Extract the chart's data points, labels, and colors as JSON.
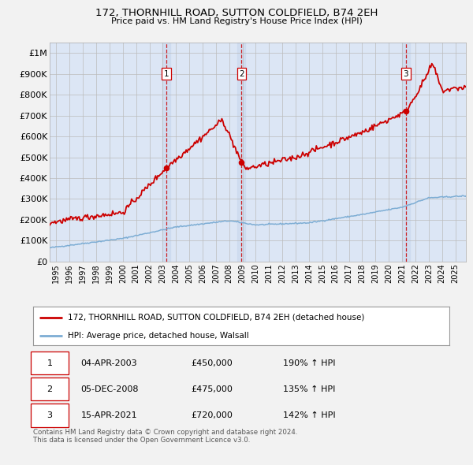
{
  "title": "172, THORNHILL ROAD, SUTTON COLDFIELD, B74 2EH",
  "subtitle": "Price paid vs. HM Land Registry's House Price Index (HPI)",
  "ytick_values": [
    0,
    100000,
    200000,
    300000,
    400000,
    500000,
    600000,
    700000,
    800000,
    900000,
    1000000
  ],
  "ylim": [
    0,
    1050000
  ],
  "xlim_start": 1994.5,
  "xlim_end": 2025.8,
  "bg_color": "#dce6f5",
  "grid_color": "#bbbbbb",
  "sale_dates": [
    2003.27,
    2008.93,
    2021.29
  ],
  "sale_prices": [
    450000,
    475000,
    720000
  ],
  "sale_labels": [
    "1",
    "2",
    "3"
  ],
  "vline_color": "#cc0000",
  "marker_color": "#cc0000",
  "hpi_line_color": "#7dadd4",
  "price_line_color": "#cc0000",
  "legend_entries": [
    "172, THORNHILL ROAD, SUTTON COLDFIELD, B74 2EH (detached house)",
    "HPI: Average price, detached house, Walsall"
  ],
  "table_data": [
    [
      "1",
      "04-APR-2003",
      "£450,000",
      "190% ↑ HPI"
    ],
    [
      "2",
      "05-DEC-2008",
      "£475,000",
      "135% ↑ HPI"
    ],
    [
      "3",
      "15-APR-2021",
      "£720,000",
      "142% ↑ HPI"
    ]
  ],
  "footnote": "Contains HM Land Registry data © Crown copyright and database right 2024.\nThis data is licensed under the Open Government Licence v3.0.",
  "x_tick_years": [
    1995,
    1996,
    1997,
    1998,
    1999,
    2000,
    2001,
    2002,
    2003,
    2004,
    2005,
    2006,
    2007,
    2008,
    2009,
    2010,
    2011,
    2012,
    2013,
    2014,
    2015,
    2016,
    2017,
    2018,
    2019,
    2020,
    2021,
    2022,
    2023,
    2024,
    2025
  ],
  "fig_bg": "#f2f2f2"
}
